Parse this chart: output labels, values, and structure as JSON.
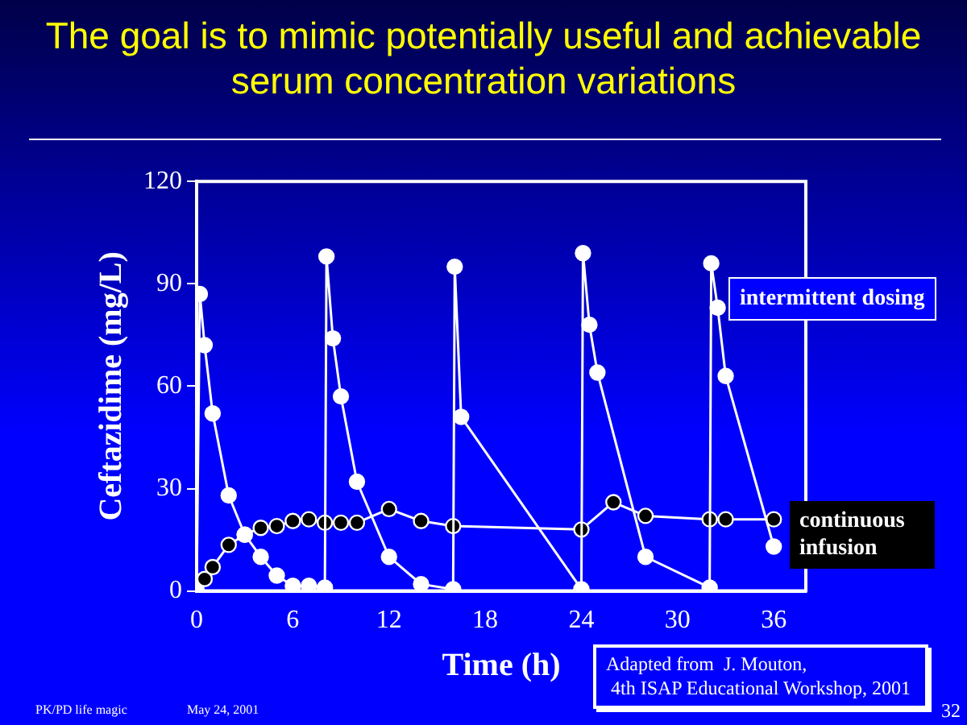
{
  "chart_data": {
    "type": "line",
    "title": "The goal is to mimic potentially useful and achievable serum concentration variations",
    "xlabel": "Time (h)",
    "ylabel": "Ceftazidime (mg/L)",
    "xlim": [
      0,
      38
    ],
    "xticks": [
      0,
      6,
      12,
      18,
      24,
      30,
      36
    ],
    "ylim": [
      0,
      120
    ],
    "yticks": [
      0,
      30,
      60,
      90,
      120
    ],
    "grid": false,
    "legend": false,
    "marker": "circle",
    "line_style": "solid",
    "series": [
      {
        "name": "intermittent dosing",
        "color": "#ffffff",
        "x": [
          0,
          0.2,
          0.5,
          1,
          2,
          3,
          4,
          5,
          6,
          7,
          8,
          8.1,
          8.5,
          9,
          10,
          12,
          14,
          16,
          16.1,
          16.5,
          24,
          24.1,
          24.5,
          25,
          28,
          32,
          32.1,
          32.5,
          33,
          36
        ],
        "values": [
          0,
          87,
          72,
          52,
          28,
          16.5,
          10,
          4.5,
          1.5,
          1.5,
          1,
          98,
          74,
          57,
          32,
          10,
          2,
          0.5,
          95,
          51,
          0.5,
          99,
          78,
          64,
          10,
          1,
          96,
          83,
          63,
          13
        ]
      },
      {
        "name": "continuous infusion",
        "color": "#000000",
        "x": [
          0,
          0.5,
          1,
          2,
          3,
          4,
          5,
          6,
          7,
          8,
          9,
          10,
          12,
          14,
          16,
          24,
          26,
          28,
          32,
          33,
          36
        ],
        "values": [
          0,
          3.5,
          7,
          13.5,
          16.5,
          18.5,
          19,
          20.5,
          21,
          20,
          20,
          20,
          24,
          20.5,
          19,
          18,
          26,
          22,
          21,
          21,
          21
        ]
      }
    ],
    "annotations": [
      "Adapted from  J. Mouton,\n 4th ISAP Educational Workshop, 2001",
      "PK/PD life magic",
      "May 24, 2001",
      "32"
    ]
  }
}
